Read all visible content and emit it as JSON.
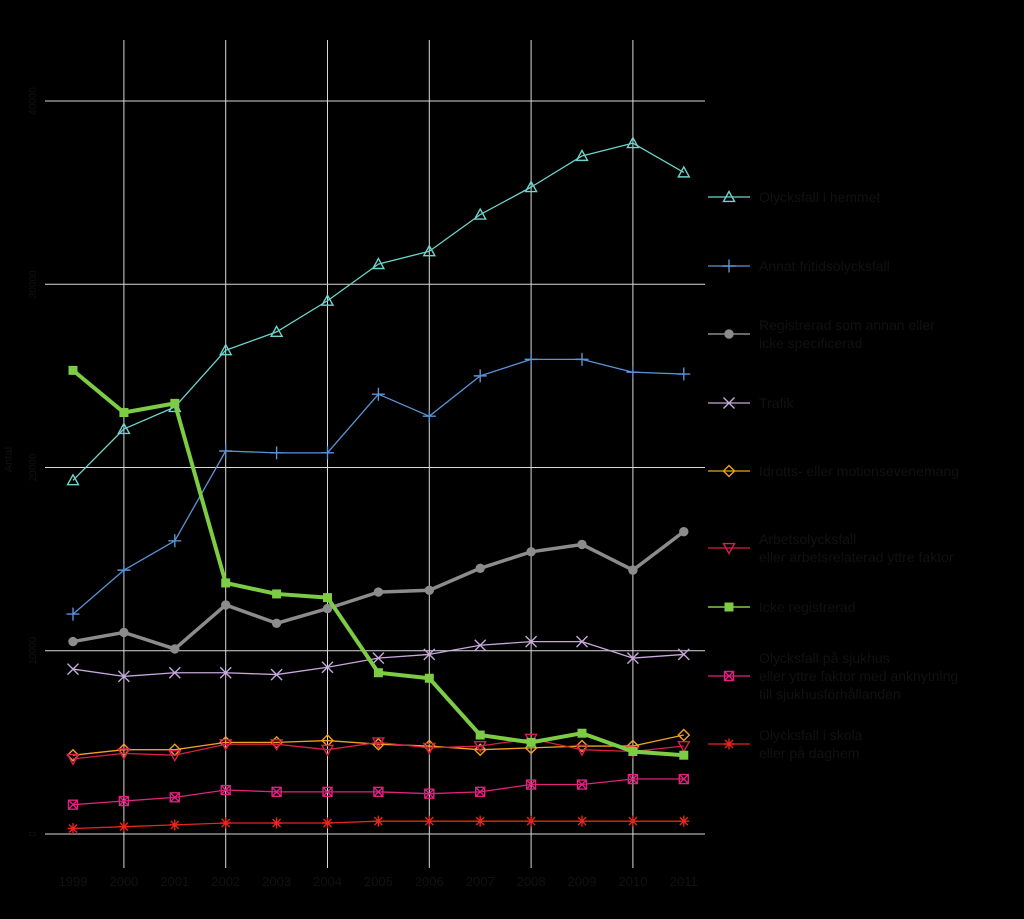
{
  "chart_data": {
    "type": "line",
    "title": "",
    "xlabel": "",
    "ylabel": "Antal",
    "x": [
      "1999",
      "2000",
      "2001",
      "2002",
      "2003",
      "2004",
      "2005",
      "2006",
      "2007",
      "2008",
      "2009",
      "2010",
      "2011"
    ],
    "ylim": [
      0,
      40000
    ],
    "y_ticks": [
      "0",
      "10000",
      "20000",
      "30000",
      "40000"
    ],
    "grid": true,
    "legend_position": "right",
    "series": [
      {
        "name": "Olycksfall i hemmet",
        "color": "#6fd3cc",
        "marker": "triangle-up",
        "width": 1.3,
        "values": [
          19300,
          22100,
          23300,
          26400,
          27400,
          29100,
          31100,
          31800,
          33800,
          35300,
          37000,
          37700,
          36100
        ]
      },
      {
        "name": "Annat fritidsolycksfall",
        "color": "#5a93d6",
        "marker": "plus",
        "width": 1.3,
        "values": [
          12000,
          14400,
          16000,
          20900,
          20800,
          20800,
          24000,
          22800,
          25000,
          25900,
          25900,
          25200,
          25100
        ]
      },
      {
        "name": "Registrerad som annan eller\nicke specificerad",
        "color": "#8c8c8c",
        "marker": "circle",
        "width": 3.5,
        "values": [
          10500,
          11000,
          10100,
          12500,
          11500,
          12300,
          13200,
          13300,
          14500,
          15400,
          15800,
          14400,
          16500
        ]
      },
      {
        "name": "Trafik",
        "color": "#c7a8dc",
        "marker": "x",
        "width": 1.3,
        "values": [
          9000,
          8600,
          8800,
          8800,
          8700,
          9100,
          9600,
          9800,
          10300,
          10500,
          10500,
          9600,
          9800
        ]
      },
      {
        "name": "Idrotts- eller motionsevenemang",
        "color": "#f0a020",
        "marker": "diamond",
        "width": 1.3,
        "values": [
          4300,
          4600,
          4600,
          5000,
          5000,
          5100,
          4900,
          4800,
          4600,
          4700,
          4800,
          4800,
          5400
        ]
      },
      {
        "name": "Arbetsolycksfall\neller arbetsrelaterad yttre faktor",
        "color": "#d81e49",
        "marker": "triangle-down",
        "width": 1.3,
        "values": [
          4100,
          4400,
          4300,
          4900,
          4900,
          4600,
          5000,
          4700,
          4800,
          5200,
          4600,
          4500,
          4800
        ]
      },
      {
        "name": "Icke registrerad",
        "color": "#7ccc45",
        "marker": "square",
        "width": 4,
        "values": [
          25300,
          23000,
          23500,
          13700,
          13100,
          12900,
          8800,
          8500,
          5400,
          5000,
          5500,
          4500,
          4300
        ]
      },
      {
        "name": "Olycksfall på sjukhus\neller yttre faktor med anknytning\ntill sjukhusförhållanden",
        "color": "#e0217f",
        "marker": "square-x",
        "width": 1.3,
        "values": [
          1600,
          1800,
          2000,
          2400,
          2300,
          2300,
          2300,
          2200,
          2300,
          2700,
          2700,
          3000,
          3000
        ]
      },
      {
        "name": "Olycksfall i skola\neller på daghem",
        "color": "#e8241b",
        "marker": "asterisk",
        "width": 1.3,
        "values": [
          300,
          400,
          500,
          600,
          600,
          600,
          700,
          700,
          700,
          700,
          700,
          700,
          700
        ]
      }
    ]
  }
}
